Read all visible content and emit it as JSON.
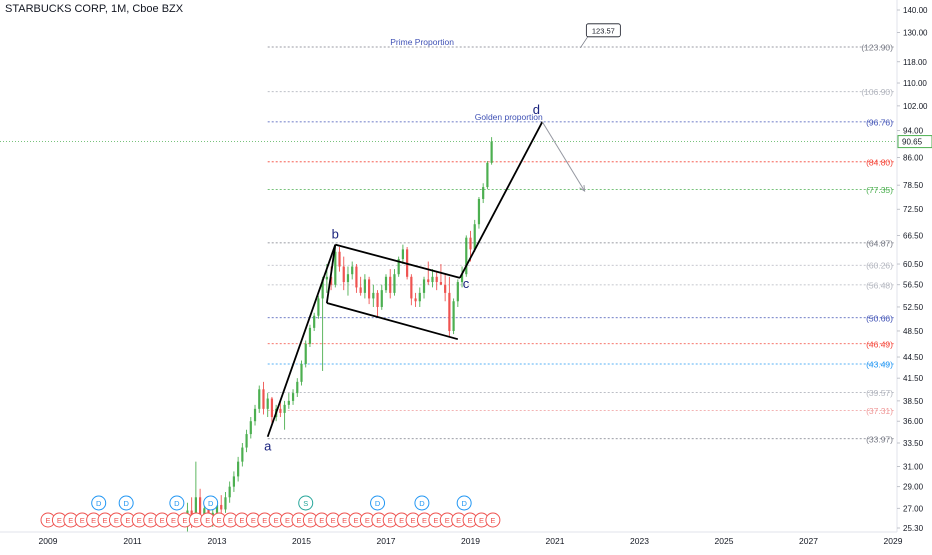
{
  "title": "STARBUCKS CORP, 1M, Cboe BZX",
  "chart_data": {
    "type": "candlestick",
    "title": "STARBUCKS CORP, 1M, Cboe BZX",
    "xlim": [
      2009,
      2029.4
    ],
    "ylim": [
      25.1,
      142
    ],
    "y_scale": "log",
    "x_tick_labels": [
      "2009",
      "2011",
      "2013",
      "2015",
      "2017",
      "2019",
      "2021",
      "2023",
      "2025",
      "2027",
      "2029"
    ],
    "y_tick_labels": [
      "140.00",
      "130.00",
      "118.00",
      "110.00",
      "102.00",
      "94.00",
      "86.00",
      "78.50",
      "72.50",
      "66.50",
      "60.50",
      "56.50",
      "52.50",
      "48.50",
      "44.50",
      "41.50",
      "38.50",
      "36.00",
      "33.50",
      "31.00",
      "29.00",
      "27.00",
      "25.30"
    ],
    "current_price": "90.65",
    "colors": {
      "up": "#26a69a",
      "up_fill": "#4caf50",
      "down": "#ef5350",
      "line": "#000000",
      "arrow": "#9598a1",
      "axis_text": "#131722",
      "current": "#4caf50"
    },
    "candles": [
      {
        "t": 2012.3,
        "o": 25.4,
        "h": 27.5,
        "l": 25.0,
        "c": 26.8
      },
      {
        "t": 2012.4,
        "o": 26.8,
        "h": 28.0,
        "l": 25.3,
        "c": 25.8
      },
      {
        "t": 2012.5,
        "o": 25.8,
        "h": 31.5,
        "l": 25.5,
        "c": 28.0
      },
      {
        "t": 2012.6,
        "o": 28.0,
        "h": 28.8,
        "l": 26.0,
        "c": 26.5
      },
      {
        "t": 2012.7,
        "o": 26.5,
        "h": 27.5,
        "l": 25.8,
        "c": 27.0
      },
      {
        "t": 2012.8,
        "o": 27.0,
        "h": 27.6,
        "l": 25.6,
        "c": 26.0
      },
      {
        "t": 2012.9,
        "o": 26.0,
        "h": 27.0,
        "l": 25.4,
        "c": 26.6
      },
      {
        "t": 2013.0,
        "o": 26.6,
        "h": 27.8,
        "l": 26.0,
        "c": 27.3
      },
      {
        "t": 2013.1,
        "o": 27.3,
        "h": 28.2,
        "l": 26.5,
        "c": 26.9
      },
      {
        "t": 2013.2,
        "o": 26.9,
        "h": 28.5,
        "l": 26.6,
        "c": 28.0
      },
      {
        "t": 2013.3,
        "o": 28.0,
        "h": 29.5,
        "l": 27.5,
        "c": 29.0
      },
      {
        "t": 2013.4,
        "o": 29.0,
        "h": 30.5,
        "l": 28.5,
        "c": 30.0
      },
      {
        "t": 2013.5,
        "o": 30.0,
        "h": 32.0,
        "l": 29.5,
        "c": 31.5
      },
      {
        "t": 2013.6,
        "o": 31.5,
        "h": 33.5,
        "l": 31.0,
        "c": 33.0
      },
      {
        "t": 2013.7,
        "o": 33.0,
        "h": 35.0,
        "l": 32.5,
        "c": 34.5
      },
      {
        "t": 2013.8,
        "o": 34.5,
        "h": 36.5,
        "l": 34.0,
        "c": 36.0
      },
      {
        "t": 2013.9,
        "o": 36.0,
        "h": 38.0,
        "l": 35.5,
        "c": 37.5
      },
      {
        "t": 2014.0,
        "o": 37.5,
        "h": 40.5,
        "l": 37.0,
        "c": 40.0
      },
      {
        "t": 2014.1,
        "o": 40.0,
        "h": 41.0,
        "l": 36.8,
        "c": 37.5
      },
      {
        "t": 2014.2,
        "o": 37.5,
        "h": 39.5,
        "l": 36.5,
        "c": 38.8
      },
      {
        "t": 2014.3,
        "o": 38.8,
        "h": 39.0,
        "l": 35.8,
        "c": 36.5
      },
      {
        "t": 2014.4,
        "o": 36.5,
        "h": 38.0,
        "l": 36.0,
        "c": 37.5
      },
      {
        "t": 2014.5,
        "o": 37.5,
        "h": 38.5,
        "l": 36.5,
        "c": 37.0
      },
      {
        "t": 2014.6,
        "o": 37.0,
        "h": 38.5,
        "l": 35.0,
        "c": 38.0
      },
      {
        "t": 2014.7,
        "o": 38.0,
        "h": 39.5,
        "l": 37.5,
        "c": 38.5
      },
      {
        "t": 2014.8,
        "o": 38.5,
        "h": 40.0,
        "l": 38.0,
        "c": 39.5
      },
      {
        "t": 2014.9,
        "o": 39.5,
        "h": 41.5,
        "l": 39.0,
        "c": 41.0
      },
      {
        "t": 2015.0,
        "o": 41.0,
        "h": 44.0,
        "l": 40.5,
        "c": 43.5
      },
      {
        "t": 2015.1,
        "o": 43.5,
        "h": 47.0,
        "l": 43.0,
        "c": 46.5
      },
      {
        "t": 2015.2,
        "o": 46.5,
        "h": 49.5,
        "l": 46.0,
        "c": 49.0
      },
      {
        "t": 2015.3,
        "o": 49.0,
        "h": 51.5,
        "l": 48.5,
        "c": 51.0
      },
      {
        "t": 2015.4,
        "o": 51.0,
        "h": 54.5,
        "l": 50.5,
        "c": 54.0
      },
      {
        "t": 2015.5,
        "o": 54.0,
        "h": 58.0,
        "l": 42.5,
        "c": 57.5
      },
      {
        "t": 2015.6,
        "o": 57.5,
        "h": 60.5,
        "l": 55.0,
        "c": 58.0
      },
      {
        "t": 2015.7,
        "o": 58.0,
        "h": 60.0,
        "l": 55.5,
        "c": 56.5
      },
      {
        "t": 2015.8,
        "o": 56.5,
        "h": 64.0,
        "l": 56.0,
        "c": 63.0
      },
      {
        "t": 2015.9,
        "o": 63.0,
        "h": 64.0,
        "l": 59.0,
        "c": 60.0
      },
      {
        "t": 2016.0,
        "o": 60.0,
        "h": 62.0,
        "l": 55.5,
        "c": 57.0
      },
      {
        "t": 2016.1,
        "o": 57.0,
        "h": 60.0,
        "l": 54.5,
        "c": 58.5
      },
      {
        "t": 2016.2,
        "o": 58.5,
        "h": 61.0,
        "l": 57.5,
        "c": 60.0
      },
      {
        "t": 2016.3,
        "o": 60.0,
        "h": 60.5,
        "l": 55.0,
        "c": 56.0
      },
      {
        "t": 2016.4,
        "o": 56.0,
        "h": 58.0,
        "l": 54.5,
        "c": 55.0
      },
      {
        "t": 2016.5,
        "o": 55.0,
        "h": 58.5,
        "l": 54.0,
        "c": 57.5
      },
      {
        "t": 2016.6,
        "o": 57.5,
        "h": 58.0,
        "l": 53.0,
        "c": 54.0
      },
      {
        "t": 2016.7,
        "o": 54.0,
        "h": 56.5,
        "l": 52.5,
        "c": 55.0
      },
      {
        "t": 2016.8,
        "o": 55.0,
        "h": 55.5,
        "l": 50.8,
        "c": 52.5
      },
      {
        "t": 2016.9,
        "o": 52.5,
        "h": 56.5,
        "l": 52.0,
        "c": 55.5
      },
      {
        "t": 2017.0,
        "o": 55.5,
        "h": 58.5,
        "l": 55.0,
        "c": 58.0
      },
      {
        "t": 2017.1,
        "o": 58.0,
        "h": 59.5,
        "l": 54.0,
        "c": 55.0
      },
      {
        "t": 2017.2,
        "o": 55.0,
        "h": 59.5,
        "l": 54.5,
        "c": 58.5
      },
      {
        "t": 2017.3,
        "o": 58.5,
        "h": 62.0,
        "l": 58.0,
        "c": 61.5
      },
      {
        "t": 2017.4,
        "o": 61.5,
        "h": 64.5,
        "l": 60.5,
        "c": 63.5
      },
      {
        "t": 2017.5,
        "o": 63.5,
        "h": 64.0,
        "l": 57.5,
        "c": 58.0
      },
      {
        "t": 2017.6,
        "o": 58.0,
        "h": 58.5,
        "l": 52.8,
        "c": 54.0
      },
      {
        "t": 2017.7,
        "o": 54.0,
        "h": 55.0,
        "l": 52.5,
        "c": 53.5
      },
      {
        "t": 2017.8,
        "o": 53.5,
        "h": 56.0,
        "l": 52.5,
        "c": 55.0
      },
      {
        "t": 2017.9,
        "o": 55.0,
        "h": 58.0,
        "l": 54.0,
        "c": 57.5
      },
      {
        "t": 2018.0,
        "o": 57.5,
        "h": 61.0,
        "l": 56.5,
        "c": 57.0
      },
      {
        "t": 2018.1,
        "o": 57.0,
        "h": 59.5,
        "l": 56.0,
        "c": 58.0
      },
      {
        "t": 2018.2,
        "o": 58.0,
        "h": 59.0,
        "l": 55.5,
        "c": 57.0
      },
      {
        "t": 2018.3,
        "o": 57.0,
        "h": 60.5,
        "l": 56.5,
        "c": 56.5
      },
      {
        "t": 2018.4,
        "o": 56.5,
        "h": 58.5,
        "l": 53.5,
        "c": 55.0
      },
      {
        "t": 2018.5,
        "o": 55.0,
        "h": 58.0,
        "l": 47.5,
        "c": 48.5
      },
      {
        "t": 2018.6,
        "o": 48.5,
        "h": 54.0,
        "l": 48.0,
        "c": 53.5
      },
      {
        "t": 2018.7,
        "o": 53.5,
        "h": 57.5,
        "l": 52.5,
        "c": 57.0
      },
      {
        "t": 2018.8,
        "o": 57.0,
        "h": 60.0,
        "l": 56.0,
        "c": 58.5
      },
      {
        "t": 2018.9,
        "o": 58.5,
        "h": 66.5,
        "l": 58.0,
        "c": 66.0
      },
      {
        "t": 2019.0,
        "o": 66.0,
        "h": 67.5,
        "l": 61.0,
        "c": 63.5
      },
      {
        "t": 2019.1,
        "o": 63.5,
        "h": 70.0,
        "l": 63.0,
        "c": 69.0
      },
      {
        "t": 2019.2,
        "o": 69.0,
        "h": 75.5,
        "l": 68.0,
        "c": 75.0
      },
      {
        "t": 2019.3,
        "o": 75.0,
        "h": 79.0,
        "l": 74.0,
        "c": 78.0
      },
      {
        "t": 2019.4,
        "o": 78.0,
        "h": 85.0,
        "l": 77.5,
        "c": 84.5
      },
      {
        "t": 2019.5,
        "o": 84.5,
        "h": 92.0,
        "l": 84.0,
        "c": 90.65
      }
    ],
    "horizontal_levels": [
      {
        "value": 123.9,
        "label": "(123.90)",
        "color": "#787b86",
        "dash": "2,2"
      },
      {
        "value": 106.9,
        "label": "(106.90)",
        "color": "#b2b5be",
        "dash": "2,2"
      },
      {
        "value": 96.76,
        "label": "(96.76)",
        "color": "#3f51b5",
        "dash": "2,2"
      },
      {
        "value": 84.8,
        "label": "(84.80)",
        "color": "#f44336",
        "dash": "2,2"
      },
      {
        "value": 77.35,
        "label": "(77.35)",
        "color": "#4caf50",
        "dash": "2,2"
      },
      {
        "value": 64.87,
        "label": "(64.87)",
        "color": "#787b86",
        "dash": "2,2"
      },
      {
        "value": 60.26,
        "label": "(60.26)",
        "color": "#b2b5be",
        "dash": "2,2"
      },
      {
        "value": 56.48,
        "label": "(56.48)",
        "color": "#b2b5be",
        "dash": "2,2"
      },
      {
        "value": 50.66,
        "label": "(50.66)",
        "color": "#3f51b5",
        "dash": "2,2"
      },
      {
        "value": 46.49,
        "label": "(46.49)",
        "color": "#f44336",
        "dash": "2,2"
      },
      {
        "value": 43.49,
        "label": "(43.49)",
        "color": "#2196f3",
        "dash": "2,2"
      },
      {
        "value": 39.57,
        "label": "(39.57)",
        "color": "#b2b5be",
        "dash": "2,2"
      },
      {
        "value": 37.31,
        "label": "(37.31)",
        "color": "#ef9a9a",
        "dash": "2,2"
      },
      {
        "value": 33.97,
        "label": "(33.97)",
        "color": "#787b86",
        "dash": "2,2"
      }
    ],
    "level_start_x": 2014.2,
    "annotations": [
      {
        "text": "Prime Proportion",
        "x": 2017.1,
        "y": 123.9,
        "color": "#3f51b5"
      },
      {
        "text": "Golden proportion",
        "x": 2019.1,
        "y": 96.76,
        "color": "#3f51b5"
      }
    ],
    "callout": {
      "text": "123.57",
      "x": 2021.6,
      "y": 123.57
    },
    "wave_points": [
      {
        "label": "a",
        "x": 2014.2,
        "y": 34.2
      },
      {
        "label": "b",
        "x": 2015.8,
        "y": 64.5
      },
      {
        "label": "c",
        "x": 2018.75,
        "y": 57.8
      },
      {
        "label": "d",
        "x": 2020.7,
        "y": 96.76
      }
    ],
    "channel": {
      "upper": [
        {
          "x": 2015.8,
          "y": 64.5
        },
        {
          "x": 2018.75,
          "y": 57.8
        }
      ],
      "lower": [
        {
          "x": 2015.6,
          "y": 53.2
        },
        {
          "x": 2018.7,
          "y": 47.2
        }
      ]
    },
    "projection_arrow": {
      "from": {
        "x": 2020.7,
        "y": 96.76
      },
      "to": {
        "x": 2021.7,
        "y": 77.0
      }
    },
    "events": [
      {
        "x": 2009.0,
        "label": "E",
        "row": "earnings"
      },
      {
        "x": 2009.27,
        "label": "E",
        "row": "earnings"
      },
      {
        "x": 2009.54,
        "label": "E",
        "row": "earnings"
      },
      {
        "x": 2009.81,
        "label": "E",
        "row": "earnings"
      },
      {
        "x": 2010.08,
        "label": "E",
        "row": "earnings"
      },
      {
        "x": 2010.35,
        "label": "E",
        "row": "earnings"
      },
      {
        "x": 2010.62,
        "label": "E",
        "row": "earnings"
      },
      {
        "x": 2010.89,
        "label": "E",
        "row": "earnings"
      },
      {
        "x": 2011.16,
        "label": "E",
        "row": "earnings"
      },
      {
        "x": 2011.43,
        "label": "E",
        "row": "earnings"
      },
      {
        "x": 2011.7,
        "label": "E",
        "row": "earnings"
      },
      {
        "x": 2011.97,
        "label": "E",
        "row": "earnings"
      },
      {
        "x": 2012.24,
        "label": "E",
        "row": "earnings"
      },
      {
        "x": 2012.51,
        "label": "E",
        "row": "earnings"
      },
      {
        "x": 2012.78,
        "label": "E",
        "row": "earnings"
      },
      {
        "x": 2013.05,
        "label": "E",
        "row": "earnings"
      },
      {
        "x": 2013.32,
        "label": "E",
        "row": "earnings"
      },
      {
        "x": 2013.59,
        "label": "E",
        "row": "earnings"
      },
      {
        "x": 2013.86,
        "label": "E",
        "row": "earnings"
      },
      {
        "x": 2014.13,
        "label": "E",
        "row": "earnings"
      },
      {
        "x": 2014.4,
        "label": "E",
        "row": "earnings"
      },
      {
        "x": 2014.67,
        "label": "E",
        "row": "earnings"
      },
      {
        "x": 2014.94,
        "label": "E",
        "row": "earnings"
      },
      {
        "x": 2015.21,
        "label": "E",
        "row": "earnings"
      },
      {
        "x": 2015.48,
        "label": "E",
        "row": "earnings"
      },
      {
        "x": 2015.75,
        "label": "E",
        "row": "earnings"
      },
      {
        "x": 2016.02,
        "label": "E",
        "row": "earnings"
      },
      {
        "x": 2016.29,
        "label": "E",
        "row": "earnings"
      },
      {
        "x": 2016.56,
        "label": "E",
        "row": "earnings"
      },
      {
        "x": 2016.83,
        "label": "E",
        "row": "earnings"
      },
      {
        "x": 2017.1,
        "label": "E",
        "row": "earnings"
      },
      {
        "x": 2017.37,
        "label": "E",
        "row": "earnings"
      },
      {
        "x": 2017.64,
        "label": "E",
        "row": "earnings"
      },
      {
        "x": 2017.91,
        "label": "E",
        "row": "earnings"
      },
      {
        "x": 2018.18,
        "label": "E",
        "row": "earnings"
      },
      {
        "x": 2018.45,
        "label": "E",
        "row": "earnings"
      },
      {
        "x": 2018.72,
        "label": "E",
        "row": "earnings"
      },
      {
        "x": 2018.99,
        "label": "E",
        "row": "earnings"
      },
      {
        "x": 2019.26,
        "label": "E",
        "row": "earnings"
      },
      {
        "x": 2019.53,
        "label": "E",
        "row": "earnings"
      },
      {
        "x": 2010.2,
        "label": "D",
        "row": "dividend"
      },
      {
        "x": 2010.85,
        "label": "D",
        "row": "dividend"
      },
      {
        "x": 2012.05,
        "label": "D",
        "row": "dividend"
      },
      {
        "x": 2012.85,
        "label": "D",
        "row": "dividend"
      },
      {
        "x": 2015.1,
        "label": "S",
        "row": "split"
      },
      {
        "x": 2016.8,
        "label": "D",
        "row": "dividend"
      },
      {
        "x": 2017.85,
        "label": "D",
        "row": "dividend"
      },
      {
        "x": 2018.85,
        "label": "D",
        "row": "dividend"
      }
    ]
  }
}
